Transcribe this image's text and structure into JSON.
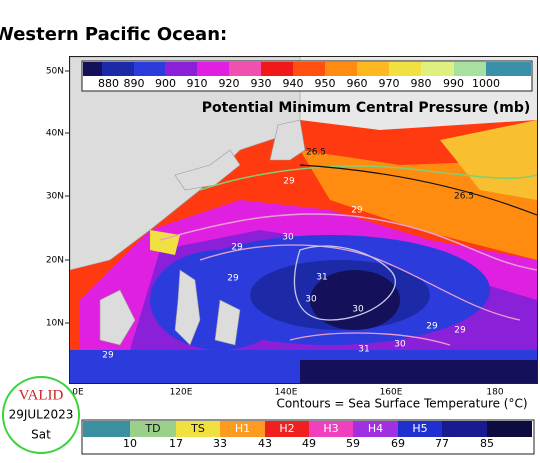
{
  "header": {
    "title": "Western Pacific Ocean:"
  },
  "map": {
    "title": "Potential Minimum Central Pressure (mb)",
    "pressure_scale": {
      "labels": [
        "880",
        "890",
        "900",
        "910",
        "920",
        "930",
        "940",
        "950",
        "960",
        "970",
        "980",
        "990",
        "1000"
      ],
      "colors": [
        "#14105a",
        "#1d2aa8",
        "#2b3bdc",
        "#8a20d8",
        "#e020e0",
        "#f050b0",
        "#f01818",
        "#ff5010",
        "#ff8c10",
        "#ffb820",
        "#f0e040",
        "#e0f080",
        "#a8e0a0",
        "#3a90a8"
      ]
    },
    "lat_labels": [
      "50N",
      "40N",
      "30N",
      "20N",
      "10N"
    ],
    "lon_labels": [
      "0E",
      "120E",
      "140E",
      "160E",
      "180"
    ],
    "contour_labels": [
      "26.5",
      "26.5",
      "29",
      "29",
      "29",
      "29",
      "29",
      "29",
      "30",
      "30",
      "30",
      "30",
      "31",
      "31",
      "29"
    ],
    "caption": "Contours = Sea Surface Temperature (°C)"
  },
  "valid": {
    "label": "VALID",
    "date": "29JUL2023",
    "day": "Sat"
  },
  "intensity_scale": {
    "colors": [
      "#3a8fa0",
      "#9ad08a",
      "#f0e040",
      "#ff9a20",
      "#f02020",
      "#f040c0",
      "#a030e0",
      "#2030d0",
      "#1a1a90",
      "#0c0c40"
    ],
    "categories": [
      "TD",
      "TS",
      "H1",
      "H2",
      "H3",
      "H4",
      "H5"
    ],
    "thresholds": [
      "10",
      "17",
      "33",
      "43",
      "49",
      "59",
      "69",
      "77",
      "85"
    ]
  }
}
